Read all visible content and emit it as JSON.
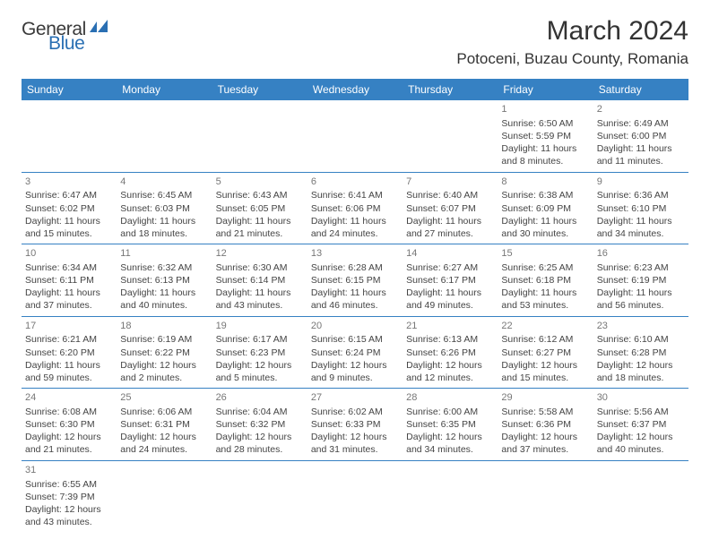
{
  "logo": {
    "general": "General",
    "blue": "Blue",
    "icon_color": "#2a6fb3"
  },
  "title": "March 2024",
  "location": "Potoceni, Buzau County, Romania",
  "header_bg": "#3681c3",
  "header_fg": "#ffffff",
  "rule_color": "#3681c3",
  "days_of_week": [
    "Sunday",
    "Monday",
    "Tuesday",
    "Wednesday",
    "Thursday",
    "Friday",
    "Saturday"
  ],
  "weeks": [
    [
      null,
      null,
      null,
      null,
      null,
      {
        "n": "1",
        "sunrise": "6:50 AM",
        "sunset": "5:59 PM",
        "daylight": "11 hours and 8 minutes."
      },
      {
        "n": "2",
        "sunrise": "6:49 AM",
        "sunset": "6:00 PM",
        "daylight": "11 hours and 11 minutes."
      }
    ],
    [
      {
        "n": "3",
        "sunrise": "6:47 AM",
        "sunset": "6:02 PM",
        "daylight": "11 hours and 15 minutes."
      },
      {
        "n": "4",
        "sunrise": "6:45 AM",
        "sunset": "6:03 PM",
        "daylight": "11 hours and 18 minutes."
      },
      {
        "n": "5",
        "sunrise": "6:43 AM",
        "sunset": "6:05 PM",
        "daylight": "11 hours and 21 minutes."
      },
      {
        "n": "6",
        "sunrise": "6:41 AM",
        "sunset": "6:06 PM",
        "daylight": "11 hours and 24 minutes."
      },
      {
        "n": "7",
        "sunrise": "6:40 AM",
        "sunset": "6:07 PM",
        "daylight": "11 hours and 27 minutes."
      },
      {
        "n": "8",
        "sunrise": "6:38 AM",
        "sunset": "6:09 PM",
        "daylight": "11 hours and 30 minutes."
      },
      {
        "n": "9",
        "sunrise": "6:36 AM",
        "sunset": "6:10 PM",
        "daylight": "11 hours and 34 minutes."
      }
    ],
    [
      {
        "n": "10",
        "sunrise": "6:34 AM",
        "sunset": "6:11 PM",
        "daylight": "11 hours and 37 minutes."
      },
      {
        "n": "11",
        "sunrise": "6:32 AM",
        "sunset": "6:13 PM",
        "daylight": "11 hours and 40 minutes."
      },
      {
        "n": "12",
        "sunrise": "6:30 AM",
        "sunset": "6:14 PM",
        "daylight": "11 hours and 43 minutes."
      },
      {
        "n": "13",
        "sunrise": "6:28 AM",
        "sunset": "6:15 PM",
        "daylight": "11 hours and 46 minutes."
      },
      {
        "n": "14",
        "sunrise": "6:27 AM",
        "sunset": "6:17 PM",
        "daylight": "11 hours and 49 minutes."
      },
      {
        "n": "15",
        "sunrise": "6:25 AM",
        "sunset": "6:18 PM",
        "daylight": "11 hours and 53 minutes."
      },
      {
        "n": "16",
        "sunrise": "6:23 AM",
        "sunset": "6:19 PM",
        "daylight": "11 hours and 56 minutes."
      }
    ],
    [
      {
        "n": "17",
        "sunrise": "6:21 AM",
        "sunset": "6:20 PM",
        "daylight": "11 hours and 59 minutes."
      },
      {
        "n": "18",
        "sunrise": "6:19 AM",
        "sunset": "6:22 PM",
        "daylight": "12 hours and 2 minutes."
      },
      {
        "n": "19",
        "sunrise": "6:17 AM",
        "sunset": "6:23 PM",
        "daylight": "12 hours and 5 minutes."
      },
      {
        "n": "20",
        "sunrise": "6:15 AM",
        "sunset": "6:24 PM",
        "daylight": "12 hours and 9 minutes."
      },
      {
        "n": "21",
        "sunrise": "6:13 AM",
        "sunset": "6:26 PM",
        "daylight": "12 hours and 12 minutes."
      },
      {
        "n": "22",
        "sunrise": "6:12 AM",
        "sunset": "6:27 PM",
        "daylight": "12 hours and 15 minutes."
      },
      {
        "n": "23",
        "sunrise": "6:10 AM",
        "sunset": "6:28 PM",
        "daylight": "12 hours and 18 minutes."
      }
    ],
    [
      {
        "n": "24",
        "sunrise": "6:08 AM",
        "sunset": "6:30 PM",
        "daylight": "12 hours and 21 minutes."
      },
      {
        "n": "25",
        "sunrise": "6:06 AM",
        "sunset": "6:31 PM",
        "daylight": "12 hours and 24 minutes."
      },
      {
        "n": "26",
        "sunrise": "6:04 AM",
        "sunset": "6:32 PM",
        "daylight": "12 hours and 28 minutes."
      },
      {
        "n": "27",
        "sunrise": "6:02 AM",
        "sunset": "6:33 PM",
        "daylight": "12 hours and 31 minutes."
      },
      {
        "n": "28",
        "sunrise": "6:00 AM",
        "sunset": "6:35 PM",
        "daylight": "12 hours and 34 minutes."
      },
      {
        "n": "29",
        "sunrise": "5:58 AM",
        "sunset": "6:36 PM",
        "daylight": "12 hours and 37 minutes."
      },
      {
        "n": "30",
        "sunrise": "5:56 AM",
        "sunset": "6:37 PM",
        "daylight": "12 hours and 40 minutes."
      }
    ],
    [
      {
        "n": "31",
        "sunrise": "6:55 AM",
        "sunset": "7:39 PM",
        "daylight": "12 hours and 43 minutes."
      },
      null,
      null,
      null,
      null,
      null,
      null
    ]
  ],
  "labels": {
    "sunrise": "Sunrise: ",
    "sunset": "Sunset: ",
    "daylight": "Daylight: "
  }
}
